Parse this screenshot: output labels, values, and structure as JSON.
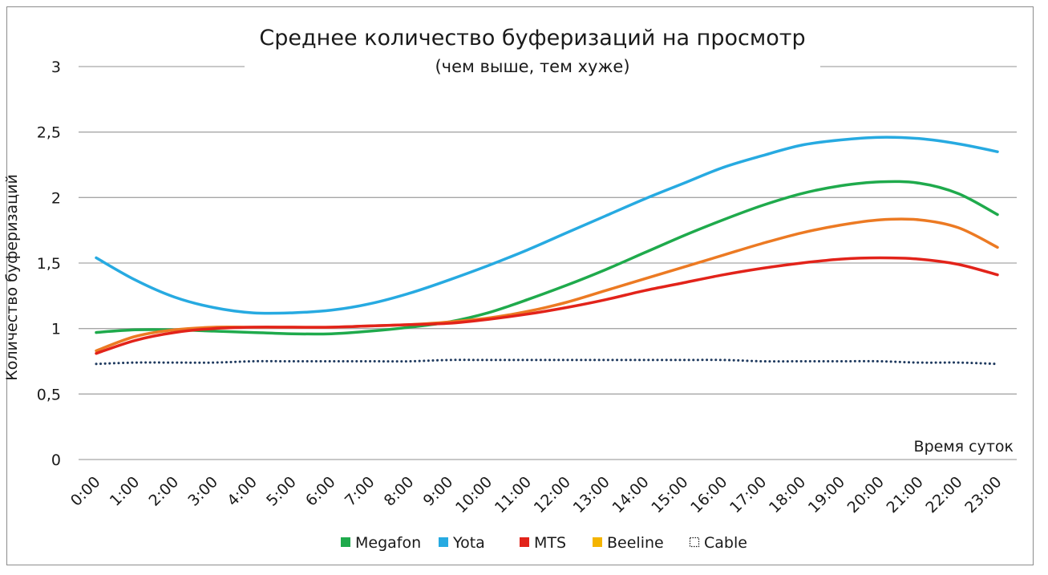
{
  "chart_data": {
    "type": "line",
    "title": "Среднее количество буферизаций на просмотр",
    "subtitle": "(чем выше, тем хуже)",
    "xlabel": "Время суток",
    "ylabel": "Количество буферизаций",
    "ylim": [
      0,
      3
    ],
    "yticks": [
      0,
      0.5,
      1,
      1.5,
      2,
      2.5,
      3
    ],
    "ytick_labels": [
      "0",
      "0,5",
      "1",
      "1,5",
      "2",
      "2,5",
      "3"
    ],
    "categories": [
      "0:00",
      "1:00",
      "2:00",
      "3:00",
      "4:00",
      "5:00",
      "6:00",
      "7:00",
      "8:00",
      "9:00",
      "10:00",
      "11:00",
      "12:00",
      "13:00",
      "14:00",
      "15:00",
      "16:00",
      "17:00",
      "18:00",
      "19:00",
      "20:00",
      "21:00",
      "22:00",
      "23:00"
    ],
    "grid": true,
    "legend_position": "bottom",
    "series": [
      {
        "name": "Megafon",
        "color": "#1faa4c",
        "style": "solid",
        "values": [
          0.97,
          0.99,
          0.99,
          0.98,
          0.97,
          0.96,
          0.96,
          0.98,
          1.01,
          1.05,
          1.12,
          1.22,
          1.33,
          1.45,
          1.58,
          1.71,
          1.83,
          1.94,
          2.03,
          2.09,
          2.12,
          2.11,
          2.03,
          1.87
        ]
      },
      {
        "name": "Yota",
        "color": "#27aae1",
        "style": "solid",
        "values": [
          1.54,
          1.37,
          1.24,
          1.16,
          1.12,
          1.12,
          1.14,
          1.19,
          1.27,
          1.37,
          1.48,
          1.6,
          1.73,
          1.86,
          1.99,
          2.11,
          2.23,
          2.32,
          2.4,
          2.44,
          2.46,
          2.45,
          2.41,
          2.35
        ]
      },
      {
        "name": "MTS",
        "color": "#e2231a",
        "style": "solid",
        "values": [
          0.81,
          0.91,
          0.97,
          1.0,
          1.01,
          1.01,
          1.01,
          1.02,
          1.03,
          1.04,
          1.07,
          1.11,
          1.16,
          1.22,
          1.29,
          1.35,
          1.41,
          1.46,
          1.5,
          1.53,
          1.54,
          1.53,
          1.49,
          1.41
        ]
      },
      {
        "name": "Beeline",
        "color": "#f4b400",
        "line_color": "#ec7a23",
        "style": "solid",
        "values": [
          0.83,
          0.94,
          0.99,
          1.01,
          1.01,
          1.01,
          1.01,
          1.02,
          1.03,
          1.05,
          1.08,
          1.13,
          1.2,
          1.29,
          1.38,
          1.47,
          1.56,
          1.65,
          1.73,
          1.79,
          1.83,
          1.83,
          1.77,
          1.62
        ]
      },
      {
        "name": "Cable",
        "color": "#1f3a5f",
        "style": "dotted",
        "values": [
          0.73,
          0.74,
          0.74,
          0.74,
          0.75,
          0.75,
          0.75,
          0.75,
          0.75,
          0.76,
          0.76,
          0.76,
          0.76,
          0.76,
          0.76,
          0.76,
          0.76,
          0.75,
          0.75,
          0.75,
          0.75,
          0.74,
          0.74,
          0.73
        ]
      }
    ]
  }
}
